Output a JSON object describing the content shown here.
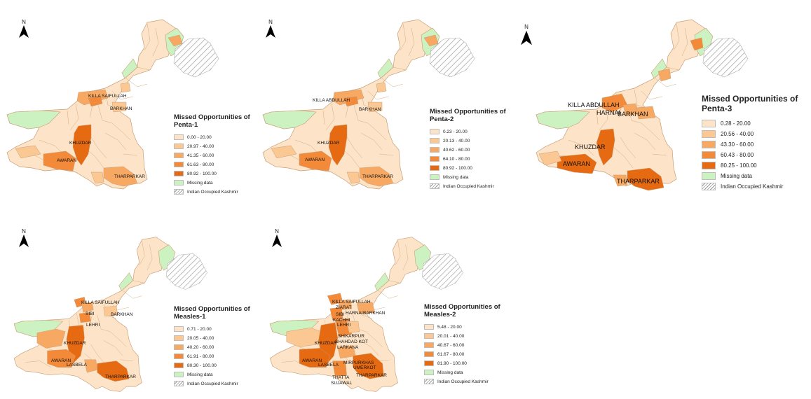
{
  "north_label": "N",
  "colors": {
    "class1": "#fde4c8",
    "class2": "#fbc894",
    "class3": "#f7a964",
    "class4": "#f28a3a",
    "class5": "#e66a12",
    "missing": "#ccf2c2",
    "occupied_hatch": "#9a9a9a",
    "boundary": "#c89c72"
  },
  "panels": [
    {
      "id": "penta1",
      "legend": {
        "title_line1": "Missed Opportunities of",
        "title_line2": "Penta-1",
        "classes": [
          "0.00 - 20.00",
          "20.97 - 40.00",
          "41.35 - 60.00",
          "61.63 - 80.00",
          "80.92 - 100.00"
        ],
        "missing": "Missing data",
        "occupied": "Indian Occupied Kashmir"
      },
      "district_labels": [
        "KILLA SAIFULLAH",
        "BARKHAN",
        "KHUZDAR",
        "AWARAN",
        "THARPARKAR"
      ]
    },
    {
      "id": "penta2",
      "legend": {
        "title_line1": "Missed Opportunities of",
        "title_line2": "Penta-2",
        "classes": [
          "0.23 - 20.00",
          "20.13 - 40.00",
          "40.62 - 60.00",
          "64.10 - 80.00",
          "80.92 - 100.00"
        ],
        "missing": "Missing data",
        "occupied": "Indian Occupied Kashmir"
      },
      "district_labels": [
        "KILLA ABDULLAH",
        "BARKHAN",
        "KHUZDAR",
        "AWARAN",
        "THARPARKAR"
      ]
    },
    {
      "id": "penta3",
      "legend": {
        "title_line1": "Missed Opportunities of",
        "title_line2": "Penta-3",
        "classes": [
          "0.28 - 20.00",
          "20.56 - 40.00",
          "43.30 - 60.00",
          "60.43 - 80.00",
          "80.25 - 100.00"
        ],
        "missing": "Missing data",
        "occupied": "Indian Occupied Kashmir"
      },
      "district_labels": [
        "KILLA ABDULLAH",
        "HARNAI",
        "BARKHAN",
        "KHUZDAR",
        "AWARAN",
        "THARPARKAR"
      ]
    },
    {
      "id": "measles1",
      "legend": {
        "title_line1": "Missed Opportunities of",
        "title_line2": "Measles-1",
        "classes": [
          "0.71 - 20.00",
          "20.05 - 40.00",
          "40.20 - 60.00",
          "61.91 - 80.00",
          "80.30 - 100.00"
        ],
        "missing": "Missing data",
        "occupied": "Indian Occupied Kashmir"
      },
      "district_labels": [
        "KILLA SAIFULLAH",
        "SIBI",
        "BARKHAN",
        "LEHRI",
        "KHUZDAR",
        "AWARAN",
        "LASBELA",
        "THARPARKAR"
      ]
    },
    {
      "id": "measles2",
      "legend": {
        "title_line1": "Missed Opportunities of",
        "title_line2": "Measles-2",
        "classes": [
          "5.48 - 20.00",
          "20.01 - 40.00",
          "40.67 - 60.00",
          "61.67 - 80.00",
          "81.90 - 100.00"
        ],
        "missing": "Missing data",
        "occupied": "Indian Occupied Kashmir"
      },
      "district_labels": [
        "KILLA SAIFULLAH",
        "ZIARAT",
        "HARNAI",
        "SIBI",
        "BARKHAN",
        "KACHHI",
        "LEHRI",
        "SHIKARPUR",
        "SHAHDAD KOT",
        "LARKANA",
        "KHUZDAR",
        "AWARAN",
        "LASBELA",
        "MIRPURKHAS",
        "UMERKOT",
        "THATTA",
        "SUJAWAL",
        "THARPARKAR"
      ]
    }
  ]
}
